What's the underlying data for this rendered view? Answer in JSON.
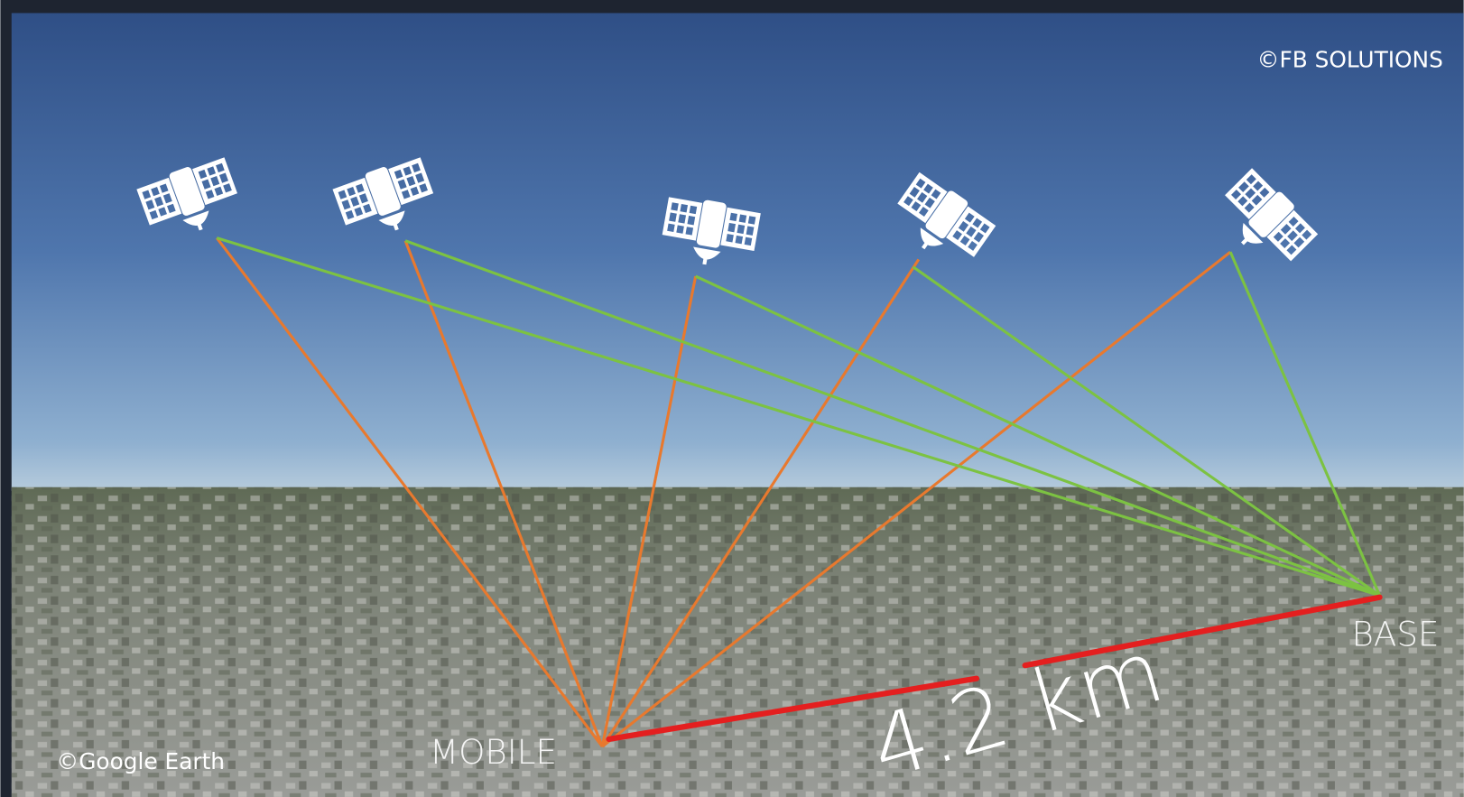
{
  "credits": {
    "owner": "©FB SOLUTIONS",
    "imagery": "©Google Earth"
  },
  "labels": {
    "mobile": "MOBILE",
    "base": "BASE",
    "distance": "4.2 km"
  }
}
